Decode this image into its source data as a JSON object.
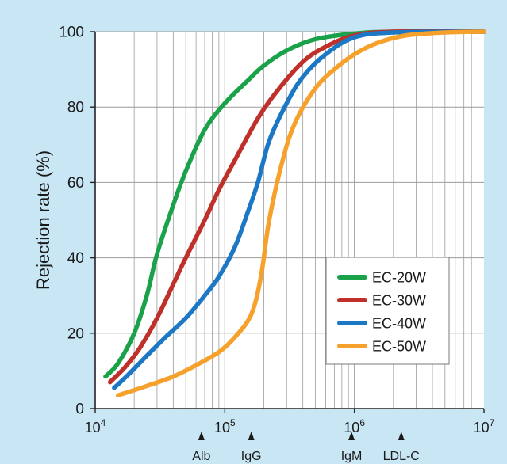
{
  "colors": {
    "panel_background": "#c9e6f5",
    "plot_background": "#ffffff",
    "grid": "#9c9c9c",
    "axis": "#222222",
    "text": "#1a1a1a"
  },
  "chart_data": {
    "type": "line",
    "title": "",
    "xlabel": "",
    "ylabel": "Rejection rate (%)",
    "x_scale": "log",
    "xlim": [
      10000,
      10000000
    ],
    "ylim": [
      0,
      100
    ],
    "grid": true,
    "legend_position": "lower-right",
    "x_ticks": [
      {
        "value": 10000,
        "base": "10",
        "exp": "4"
      },
      {
        "value": 100000,
        "base": "10",
        "exp": "5"
      },
      {
        "value": 1000000,
        "base": "10",
        "exp": "6"
      },
      {
        "value": 10000000,
        "base": "10",
        "exp": "7"
      }
    ],
    "y_ticks": [
      0,
      20,
      40,
      60,
      80,
      100
    ],
    "markers": [
      {
        "label": "Alb",
        "x": 66000
      },
      {
        "label": "IgG",
        "x": 160000
      },
      {
        "label": "IgM",
        "x": 950000
      },
      {
        "label": "LDL-C",
        "x": 2300000
      }
    ],
    "series": [
      {
        "name": "EC-20W",
        "color": "#1aa24a",
        "points": [
          [
            12000,
            8.5
          ],
          [
            15000,
            12
          ],
          [
            20000,
            20
          ],
          [
            25000,
            30
          ],
          [
            30000,
            41
          ],
          [
            40000,
            54
          ],
          [
            50000,
            63
          ],
          [
            70000,
            74
          ],
          [
            100000,
            81
          ],
          [
            150000,
            87
          ],
          [
            200000,
            91
          ],
          [
            300000,
            95
          ],
          [
            500000,
            98
          ],
          [
            1000000,
            99.5
          ],
          [
            2000000,
            100
          ],
          [
            11000000,
            100
          ]
        ]
      },
      {
        "name": "EC-30W",
        "color": "#c0302a",
        "points": [
          [
            13000,
            7
          ],
          [
            17000,
            11
          ],
          [
            22000,
            16
          ],
          [
            30000,
            24
          ],
          [
            40000,
            33
          ],
          [
            50000,
            40
          ],
          [
            70000,
            50
          ],
          [
            90000,
            58
          ],
          [
            120000,
            66
          ],
          [
            180000,
            77
          ],
          [
            250000,
            84
          ],
          [
            400000,
            92
          ],
          [
            600000,
            96
          ],
          [
            1000000,
            99
          ],
          [
            2000000,
            100
          ],
          [
            11000000,
            100
          ]
        ]
      },
      {
        "name": "EC-40W",
        "color": "#1c78c4",
        "points": [
          [
            14000,
            5.5
          ],
          [
            18000,
            9
          ],
          [
            25000,
            14
          ],
          [
            35000,
            19
          ],
          [
            50000,
            24
          ],
          [
            70000,
            30
          ],
          [
            90000,
            35
          ],
          [
            120000,
            43
          ],
          [
            150000,
            52
          ],
          [
            180000,
            60
          ],
          [
            220000,
            71
          ],
          [
            300000,
            81
          ],
          [
            400000,
            88
          ],
          [
            600000,
            94
          ],
          [
            1000000,
            98.5
          ],
          [
            2000000,
            99.8
          ],
          [
            11000000,
            100
          ]
        ]
      },
      {
        "name": "EC-50W",
        "color": "#f6a12b",
        "points": [
          [
            15000,
            3.5
          ],
          [
            25000,
            6
          ],
          [
            40000,
            8.5
          ],
          [
            60000,
            11.5
          ],
          [
            90000,
            15
          ],
          [
            120000,
            19
          ],
          [
            160000,
            25
          ],
          [
            190000,
            35
          ],
          [
            220000,
            50
          ],
          [
            280000,
            66
          ],
          [
            350000,
            76
          ],
          [
            500000,
            85
          ],
          [
            700000,
            90
          ],
          [
            1000000,
            94
          ],
          [
            1500000,
            97
          ],
          [
            2500000,
            99
          ],
          [
            5000000,
            99.8
          ],
          [
            11000000,
            100
          ]
        ]
      }
    ]
  }
}
